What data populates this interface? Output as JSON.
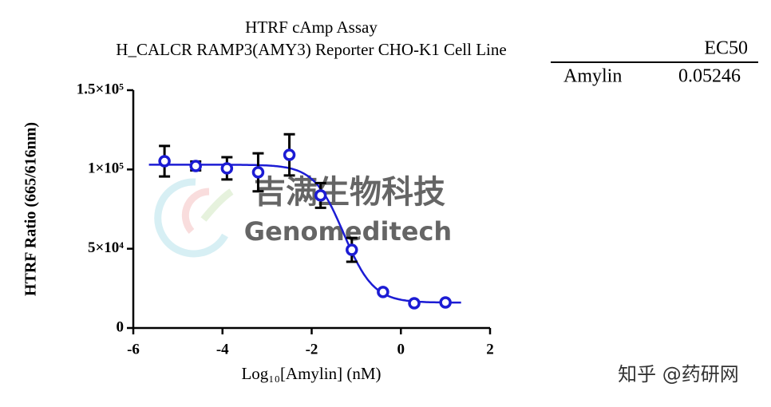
{
  "chart_data": {
    "type": "dose_response",
    "title": "HTRF cAmp Assay",
    "subtitle": "H_CALCR RAMP3(AMY3) Reporter CHO-K1 Cell Line",
    "x_label": "Log₁₀[Amylin] (nM)",
    "y_label": "HTRF Ratio (665/616nm)",
    "x": [
      -5.3,
      -4.6,
      -3.9,
      -3.2,
      -2.5,
      -1.8,
      -1.1,
      -0.4,
      0.3,
      1.0
    ],
    "values": [
      105200,
      102200,
      100700,
      98200,
      109200,
      83600,
      49300,
      22700,
      15600,
      16100
    ],
    "errors": [
      9600,
      2800,
      7000,
      12000,
      13000,
      7800,
      7500,
      1000,
      800,
      800
    ],
    "color": "#1c1cd4",
    "error_color": "#000000",
    "fit": {
      "top": 103000,
      "bottom": 16000,
      "hill_slope": -1.3
    },
    "xlim": [
      -6,
      2
    ],
    "xticks": [
      -6,
      -4,
      -2,
      0,
      2
    ],
    "ylim": [
      0,
      150000
    ],
    "yticks": [
      0,
      {
        "value": 50000,
        "label": "5×10⁴"
      },
      {
        "value": 100000,
        "label": "1×10⁵"
      },
      {
        "value": 150000,
        "label": "1.5×10⁵"
      }
    ],
    "table": {
      "header": "EC50",
      "rows": [
        {
          "name": "Amylin",
          "value": 0.05246
        }
      ]
    },
    "watermarks": [
      "吉满生物科技",
      "Genomeditech",
      "知乎 @药研网"
    ]
  }
}
